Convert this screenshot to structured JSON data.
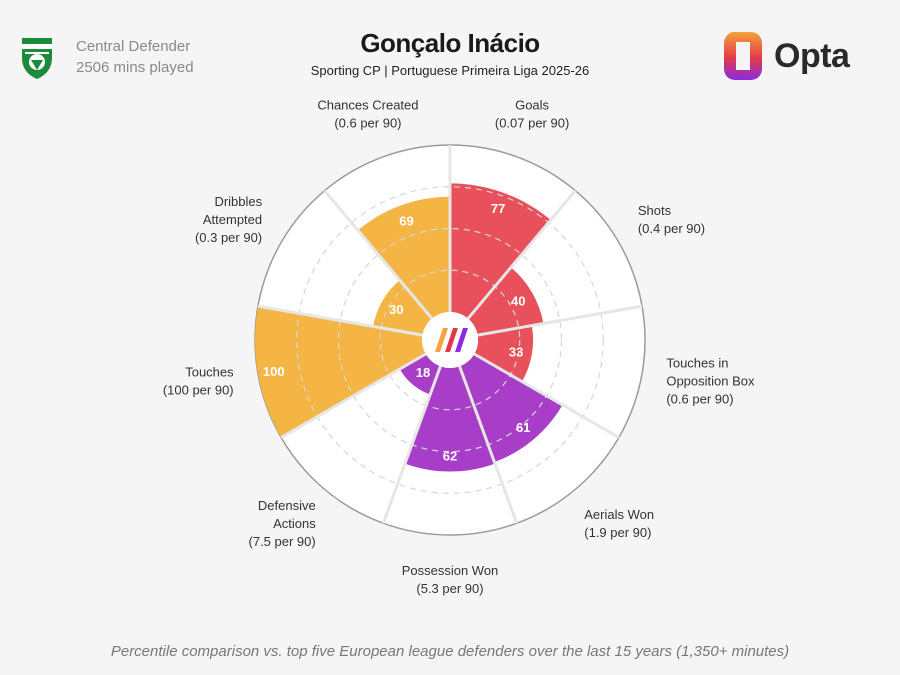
{
  "header": {
    "player": "Gonçalo Inácio",
    "subtitle": "Sporting CP | Portuguese Primeira Liga 2025-26",
    "position": "Central Defender",
    "minutes": "2506 mins played",
    "brand": "Opta"
  },
  "footer": {
    "note": "Percentile comparison vs. top five European league defenders over the last 15 years (1,350+ minutes)"
  },
  "colors": {
    "attacking": "#e8505b",
    "defending": "#a83ec8",
    "possession": "#f5b545",
    "club_green": "#1e8a3c",
    "opta_gradient": [
      "#f7a23b",
      "#e0394c",
      "#8a2be2"
    ]
  },
  "chart_data": {
    "type": "radar",
    "scale": [
      0,
      100
    ],
    "grid": true,
    "title": "Gonçalo Inácio",
    "categories": [
      {
        "metric": "Goals",
        "per90": "(0.07 per 90)",
        "percentile": 77,
        "group": "attacking"
      },
      {
        "metric": "Shots",
        "per90": "(0.4 per 90)",
        "percentile": 40,
        "group": "attacking"
      },
      {
        "metric": "Touches in Opposition Box",
        "label_lines": [
          "Touches in",
          "Opposition Box"
        ],
        "per90": "(0.6 per 90)",
        "percentile": 33,
        "group": "attacking"
      },
      {
        "metric": "Aerials Won",
        "per90": "(1.9 per 90)",
        "percentile": 61,
        "group": "defending"
      },
      {
        "metric": "Possession Won",
        "per90": "(5.3 per 90)",
        "percentile": 62,
        "group": "defending"
      },
      {
        "metric": "Defensive Actions",
        "label_lines": [
          "Defensive",
          "Actions"
        ],
        "per90": "(7.5 per 90)",
        "percentile": 18,
        "group": "defending"
      },
      {
        "metric": "Touches",
        "per90": "(100 per 90)",
        "percentile": 100,
        "group": "possession"
      },
      {
        "metric": "Dribbles Attempted",
        "label_lines": [
          "Dribbles",
          "Attempted"
        ],
        "per90": "(0.3 per 90)",
        "percentile": 30,
        "group": "possession"
      },
      {
        "metric": "Chances Created",
        "per90": "(0.6 per 90)",
        "percentile": 69,
        "group": "possession"
      }
    ]
  }
}
